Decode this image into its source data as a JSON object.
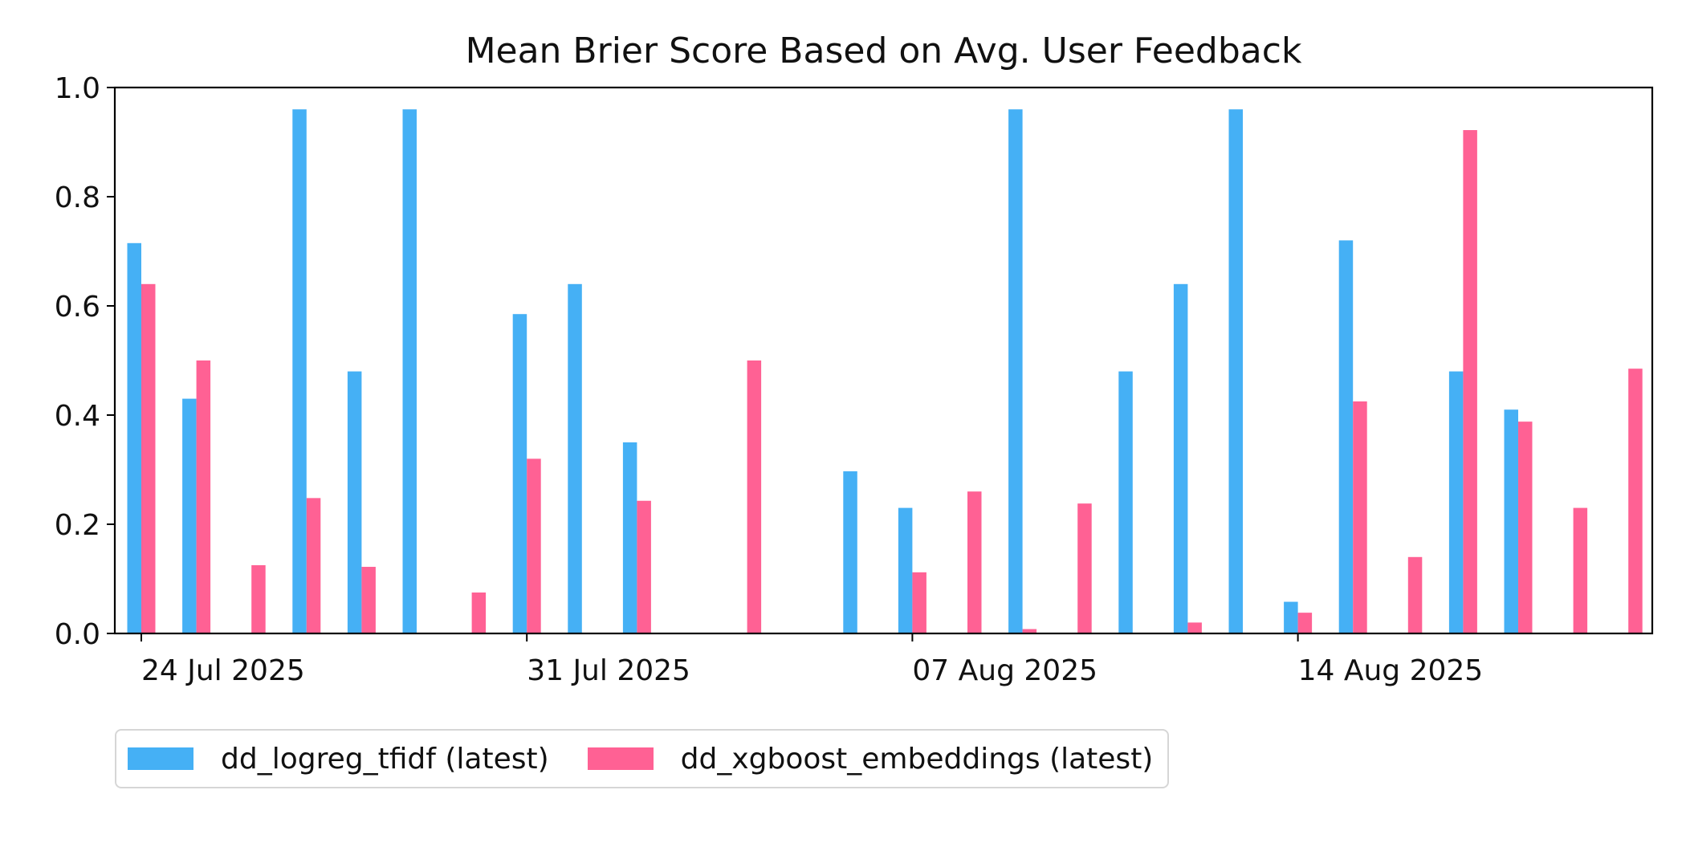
{
  "chart_data": {
    "type": "bar",
    "title": "Mean Brier Score Based on Avg. User Feedback",
    "xlabel": "",
    "ylabel": "",
    "ylim": [
      0,
      1.0
    ],
    "yticks": [
      "0.0",
      "0.2",
      "0.4",
      "0.6",
      "0.8",
      "1.0"
    ],
    "x_date_range": [
      "2025-07-23",
      "2025-08-20"
    ],
    "xticks": [
      {
        "date": "2025-07-24",
        "label": "24 Jul 2025"
      },
      {
        "date": "2025-07-31",
        "label": "31 Jul 2025"
      },
      {
        "date": "2025-08-07",
        "label": "07 Aug 2025"
      },
      {
        "date": "2025-08-14",
        "label": "14 Aug 2025"
      }
    ],
    "categories": [
      "2025-07-24",
      "2025-07-25",
      "2025-07-26",
      "2025-07-27",
      "2025-07-28",
      "2025-07-29",
      "2025-07-30",
      "2025-07-31",
      "2025-08-01",
      "2025-08-02",
      "2025-08-03",
      "2025-08-04",
      "2025-08-05",
      "2025-08-06",
      "2025-08-07",
      "2025-08-08",
      "2025-08-09",
      "2025-08-10",
      "2025-08-11",
      "2025-08-12",
      "2025-08-13",
      "2025-08-14",
      "2025-08-15",
      "2025-08-16",
      "2025-08-17",
      "2025-08-18",
      "2025-08-19",
      "2025-08-20"
    ],
    "series": [
      {
        "name": "dd_logreg_tfidf (latest)",
        "color": "#45b0f5",
        "values": [
          0.715,
          0.43,
          null,
          0.96,
          0.48,
          0.96,
          null,
          0.585,
          0.64,
          0.35,
          null,
          null,
          null,
          0.297,
          0.23,
          null,
          0.96,
          null,
          0.48,
          0.64,
          0.96,
          0.058,
          0.72,
          null,
          0.48,
          0.41,
          null,
          null
        ]
      },
      {
        "name": "dd_xgboost_embeddings (latest)",
        "color": "#ff6194",
        "values": [
          0.64,
          0.5,
          0.125,
          0.248,
          0.122,
          null,
          0.075,
          0.32,
          null,
          0.243,
          null,
          0.5,
          null,
          null,
          0.112,
          0.26,
          0.008,
          0.238,
          null,
          0.02,
          null,
          0.038,
          0.425,
          0.14,
          0.922,
          0.388,
          0.23,
          0.485
        ]
      }
    ],
    "grid": false,
    "legend_position": "bottom-left"
  }
}
